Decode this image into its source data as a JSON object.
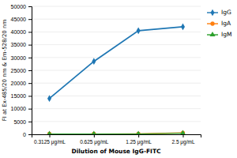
{
  "chart_data": {
    "type": "line",
    "xlabel": "Dilution of Mouse IgG-FITC",
    "ylabel": "FI at Ex-485/20 nm & Em-528/20 nm",
    "categories": [
      "0.3125 μg/mL",
      "0.625 μg/mL",
      "1.25 μg/mL",
      "2.5 μg/mL"
    ],
    "series": [
      {
        "name": "IgG",
        "marker": "diamond",
        "values": [
          14000,
          28500,
          40500,
          42000
        ]
      },
      {
        "name": "IgA",
        "marker": "circle",
        "values": [
          150,
          150,
          200,
          600
        ]
      },
      {
        "name": "IgM",
        "marker": "triangle",
        "values": [
          100,
          100,
          150,
          400
        ]
      }
    ],
    "ylim": [
      0,
      50000
    ],
    "yticks": [
      0,
      5000,
      10000,
      15000,
      20000,
      25000,
      30000,
      35000,
      40000,
      45000,
      50000
    ],
    "grid": true,
    "legend": "right"
  }
}
